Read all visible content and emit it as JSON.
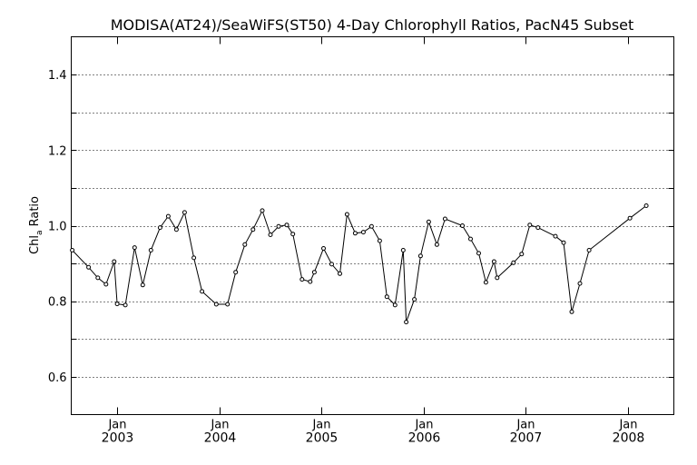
{
  "chart_data": {
    "type": "line",
    "title": "MODISA(AT24)/SeaWiFS(ST50) 4-Day Chlorophyll Ratios, PacN45 Subset",
    "ylabel": "Chl",
    "ylabel_sub": "a",
    "ylabel_tail": " Ratio",
    "ylim": [
      0.5,
      1.5
    ],
    "xlim": [
      2002.55,
      2008.45
    ],
    "yticks": [
      0.6,
      0.7,
      0.8,
      0.9,
      1.0,
      1.1,
      1.2,
      1.3,
      1.4
    ],
    "ytick_labels": [
      {
        "value": 0.6,
        "label": "0.6"
      },
      {
        "value": 0.8,
        "label": "0.8"
      },
      {
        "value": 1.0,
        "label": "1.0"
      },
      {
        "value": 1.2,
        "label": "1.2"
      },
      {
        "value": 1.4,
        "label": "1.4"
      }
    ],
    "xticks": [
      {
        "x": 2003.0,
        "label": "Jan",
        "year": "2003"
      },
      {
        "x": 2004.0,
        "label": "Jan",
        "year": "2004"
      },
      {
        "x": 2005.0,
        "label": "Jan",
        "year": "2005"
      },
      {
        "x": 2006.0,
        "label": "Jan",
        "year": "2006"
      },
      {
        "x": 2007.0,
        "label": "Jan",
        "year": "2007"
      },
      {
        "x": 2008.0,
        "label": "Jan",
        "year": "2008"
      }
    ],
    "grid": true,
    "series": [
      {
        "points": [
          [
            2002.56,
            0.935
          ],
          [
            2002.72,
            0.89
          ],
          [
            2002.81,
            0.862
          ],
          [
            2002.89,
            0.845
          ],
          [
            2002.97,
            0.905
          ],
          [
            2003.0,
            0.793
          ],
          [
            2003.08,
            0.79
          ],
          [
            2003.17,
            0.942
          ],
          [
            2003.25,
            0.843
          ],
          [
            2003.33,
            0.935
          ],
          [
            2003.42,
            0.995
          ],
          [
            2003.5,
            1.025
          ],
          [
            2003.58,
            0.99
          ],
          [
            2003.66,
            1.035
          ],
          [
            2003.75,
            0.915
          ],
          [
            2003.83,
            0.826
          ],
          [
            2003.97,
            0.792
          ],
          [
            2004.08,
            0.792
          ],
          [
            2004.16,
            0.877
          ],
          [
            2004.25,
            0.95
          ],
          [
            2004.33,
            0.99
          ],
          [
            2004.42,
            1.04
          ],
          [
            2004.5,
            0.976
          ],
          [
            2004.58,
            0.998
          ],
          [
            2004.66,
            1.002
          ],
          [
            2004.72,
            0.978
          ],
          [
            2004.81,
            0.858
          ],
          [
            2004.89,
            0.852
          ],
          [
            2004.93,
            0.877
          ],
          [
            2005.02,
            0.94
          ],
          [
            2005.1,
            0.898
          ],
          [
            2005.18,
            0.873
          ],
          [
            2005.25,
            1.03
          ],
          [
            2005.33,
            0.98
          ],
          [
            2005.41,
            0.983
          ],
          [
            2005.49,
            0.998
          ],
          [
            2005.57,
            0.96
          ],
          [
            2005.64,
            0.812
          ],
          [
            2005.72,
            0.79
          ],
          [
            2005.8,
            0.935
          ],
          [
            2005.83,
            0.745
          ],
          [
            2005.91,
            0.805
          ],
          [
            2005.97,
            0.92
          ],
          [
            2006.05,
            1.01
          ],
          [
            2006.13,
            0.95
          ],
          [
            2006.21,
            1.018
          ],
          [
            2006.38,
            1.0
          ],
          [
            2006.46,
            0.965
          ],
          [
            2006.54,
            0.927
          ],
          [
            2006.61,
            0.85
          ],
          [
            2006.69,
            0.905
          ],
          [
            2006.72,
            0.862
          ],
          [
            2006.88,
            0.902
          ],
          [
            2006.96,
            0.925
          ],
          [
            2007.04,
            1.002
          ],
          [
            2007.12,
            0.995
          ],
          [
            2007.29,
            0.972
          ],
          [
            2007.37,
            0.955
          ],
          [
            2007.45,
            0.772
          ],
          [
            2007.53,
            0.847
          ],
          [
            2007.62,
            0.935
          ],
          [
            2008.02,
            1.02
          ],
          [
            2008.18,
            1.053
          ]
        ]
      }
    ]
  }
}
